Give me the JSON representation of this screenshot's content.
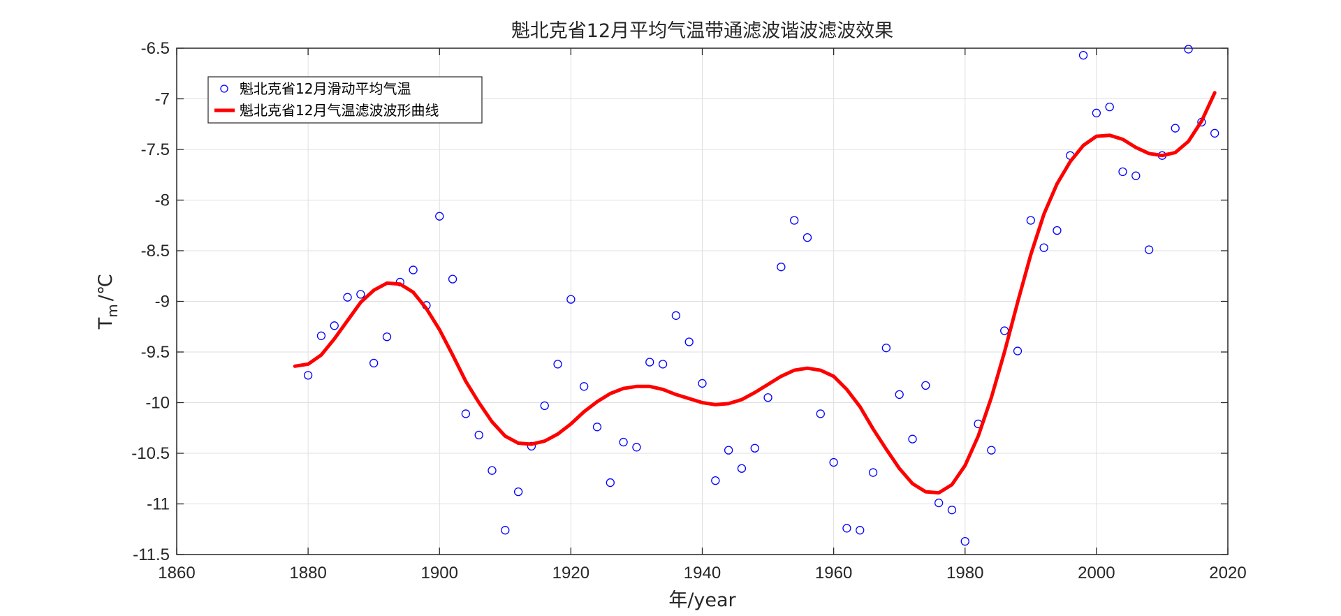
{
  "chart_data": {
    "type": "line",
    "title": "魁北克省12月平均气温带通滤波谐波滤波效果",
    "xlabel": "年/year",
    "ylabel": {
      "main": "T",
      "sub": "m",
      "unit": "/℃"
    },
    "xlim": [
      1860,
      2020
    ],
    "ylim": [
      -11.5,
      -6.5
    ],
    "xticks": [
      1860,
      1880,
      1900,
      1920,
      1940,
      1960,
      1980,
      2000,
      2020
    ],
    "yticks": [
      -6.5,
      -7,
      -7.5,
      -8,
      -8.5,
      -9,
      -9.5,
      -10,
      -10.5,
      -11,
      -11.5
    ],
    "grid": true,
    "legend_position": "top-left",
    "series": [
      {
        "name": "魁北克省12月滑动平均气温",
        "type": "scatter",
        "marker": "circle",
        "color": "#0000ff",
        "points": [
          [
            1880,
            -9.73
          ],
          [
            1882,
            -9.34
          ],
          [
            1884,
            -9.24
          ],
          [
            1886,
            -8.96
          ],
          [
            1888,
            -8.93
          ],
          [
            1890,
            -9.61
          ],
          [
            1892,
            -9.35
          ],
          [
            1894,
            -8.81
          ],
          [
            1896,
            -8.69
          ],
          [
            1898,
            -9.04
          ],
          [
            1900,
            -8.16
          ],
          [
            1902,
            -8.78
          ],
          [
            1904,
            -10.11
          ],
          [
            1906,
            -10.32
          ],
          [
            1908,
            -10.67
          ],
          [
            1910,
            -11.26
          ],
          [
            1912,
            -10.88
          ],
          [
            1914,
            -10.43
          ],
          [
            1916,
            -10.03
          ],
          [
            1918,
            -9.62
          ],
          [
            1920,
            -8.98
          ],
          [
            1922,
            -9.84
          ],
          [
            1924,
            -10.24
          ],
          [
            1926,
            -10.79
          ],
          [
            1928,
            -10.39
          ],
          [
            1930,
            -10.44
          ],
          [
            1932,
            -9.6
          ],
          [
            1934,
            -9.62
          ],
          [
            1936,
            -9.14
          ],
          [
            1938,
            -9.4
          ],
          [
            1940,
            -9.81
          ],
          [
            1942,
            -10.77
          ],
          [
            1944,
            -10.47
          ],
          [
            1946,
            -10.65
          ],
          [
            1948,
            -10.45
          ],
          [
            1950,
            -9.95
          ],
          [
            1952,
            -8.66
          ],
          [
            1954,
            -8.2
          ],
          [
            1956,
            -8.37
          ],
          [
            1958,
            -10.11
          ],
          [
            1960,
            -10.59
          ],
          [
            1962,
            -11.24
          ],
          [
            1964,
            -11.26
          ],
          [
            1966,
            -10.69
          ],
          [
            1968,
            -9.46
          ],
          [
            1970,
            -9.92
          ],
          [
            1972,
            -10.36
          ],
          [
            1974,
            -9.83
          ],
          [
            1976,
            -10.99
          ],
          [
            1978,
            -11.06
          ],
          [
            1980,
            -11.37
          ],
          [
            1982,
            -10.21
          ],
          [
            1984,
            -10.47
          ],
          [
            1986,
            -9.29
          ],
          [
            1988,
            -9.49
          ],
          [
            1990,
            -8.2
          ],
          [
            1992,
            -8.47
          ],
          [
            1994,
            -8.3
          ],
          [
            1996,
            -7.56
          ],
          [
            1998,
            -6.57
          ],
          [
            2000,
            -7.14
          ],
          [
            2002,
            -7.08
          ],
          [
            2004,
            -7.72
          ],
          [
            2006,
            -7.76
          ],
          [
            2008,
            -8.49
          ],
          [
            2010,
            -7.56
          ],
          [
            2012,
            -7.29
          ],
          [
            2014,
            -6.51
          ],
          [
            2016,
            -7.23
          ],
          [
            2018,
            -7.34
          ]
        ]
      },
      {
        "name": "魁北克省12月气温滤波波形曲线",
        "type": "line",
        "color": "#ff0000",
        "points": [
          [
            1878,
            -9.64
          ],
          [
            1880,
            -9.62
          ],
          [
            1882,
            -9.53
          ],
          [
            1884,
            -9.37
          ],
          [
            1886,
            -9.19
          ],
          [
            1888,
            -9.01
          ],
          [
            1890,
            -8.89
          ],
          [
            1892,
            -8.82
          ],
          [
            1894,
            -8.83
          ],
          [
            1896,
            -8.91
          ],
          [
            1898,
            -9.07
          ],
          [
            1900,
            -9.28
          ],
          [
            1902,
            -9.53
          ],
          [
            1904,
            -9.79
          ],
          [
            1906,
            -10.0
          ],
          [
            1908,
            -10.19
          ],
          [
            1910,
            -10.33
          ],
          [
            1912,
            -10.4
          ],
          [
            1914,
            -10.41
          ],
          [
            1916,
            -10.38
          ],
          [
            1918,
            -10.31
          ],
          [
            1920,
            -10.21
          ],
          [
            1922,
            -10.09
          ],
          [
            1924,
            -9.99
          ],
          [
            1926,
            -9.91
          ],
          [
            1928,
            -9.86
          ],
          [
            1930,
            -9.84
          ],
          [
            1932,
            -9.84
          ],
          [
            1934,
            -9.87
          ],
          [
            1936,
            -9.92
          ],
          [
            1938,
            -9.96
          ],
          [
            1940,
            -10.0
          ],
          [
            1942,
            -10.02
          ],
          [
            1944,
            -10.01
          ],
          [
            1946,
            -9.97
          ],
          [
            1948,
            -9.9
          ],
          [
            1950,
            -9.82
          ],
          [
            1952,
            -9.74
          ],
          [
            1954,
            -9.68
          ],
          [
            1956,
            -9.66
          ],
          [
            1958,
            -9.68
          ],
          [
            1960,
            -9.74
          ],
          [
            1962,
            -9.87
          ],
          [
            1964,
            -10.04
          ],
          [
            1966,
            -10.26
          ],
          [
            1968,
            -10.46
          ],
          [
            1970,
            -10.65
          ],
          [
            1972,
            -10.8
          ],
          [
            1974,
            -10.88
          ],
          [
            1976,
            -10.89
          ],
          [
            1978,
            -10.81
          ],
          [
            1980,
            -10.62
          ],
          [
            1982,
            -10.33
          ],
          [
            1984,
            -9.95
          ],
          [
            1986,
            -9.5
          ],
          [
            1988,
            -9.01
          ],
          [
            1990,
            -8.54
          ],
          [
            1992,
            -8.14
          ],
          [
            1994,
            -7.84
          ],
          [
            1996,
            -7.62
          ],
          [
            1998,
            -7.46
          ],
          [
            2000,
            -7.37
          ],
          [
            2002,
            -7.36
          ],
          [
            2004,
            -7.4
          ],
          [
            2006,
            -7.48
          ],
          [
            2008,
            -7.54
          ],
          [
            2010,
            -7.56
          ],
          [
            2012,
            -7.53
          ],
          [
            2014,
            -7.42
          ],
          [
            2016,
            -7.22
          ],
          [
            2018,
            -6.94
          ]
        ]
      }
    ]
  }
}
